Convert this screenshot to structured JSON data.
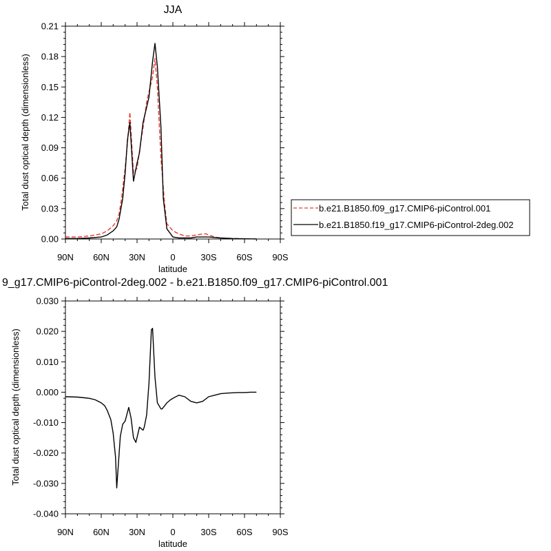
{
  "chart_data": [
    {
      "type": "line",
      "title": "JJA",
      "xlabel": "latitude",
      "ylabel": "Total dust optical depth (dimensionless)",
      "xlim": [
        90,
        -90
      ],
      "ylim": [
        0,
        0.21
      ],
      "xticks": [
        90,
        60,
        30,
        0,
        -30,
        -60,
        -90
      ],
      "xtick_labels": [
        "90N",
        "60N",
        "30N",
        "0",
        "30S",
        "60S",
        "90S"
      ],
      "yticks": [
        0,
        0.03,
        0.06,
        0.09,
        0.12,
        0.15,
        0.18,
        0.21
      ],
      "ytick_labels": [
        "0.00",
        "0.03",
        "0.06",
        "0.09",
        "0.12",
        "0.15",
        "0.18",
        "0.21"
      ],
      "grid": false,
      "legend_position": "right",
      "series": [
        {
          "name": "b.e21.B1850.f09_g17.CMIP6-piControl.001",
          "color": "#e8372f",
          "dash": "dashed",
          "x": [
            90,
            80,
            70,
            60,
            55,
            50,
            47,
            45,
            43,
            40,
            38,
            36,
            33,
            30,
            27,
            25,
            22,
            20,
            17,
            15,
            13,
            10,
            7,
            5,
            0,
            -5,
            -10,
            -15,
            -20,
            -25,
            -28,
            -30,
            -35,
            -40,
            -50,
            -60,
            -70
          ],
          "y": [
            0.002,
            0.002,
            0.003,
            0.005,
            0.008,
            0.013,
            0.018,
            0.025,
            0.04,
            0.07,
            0.095,
            0.125,
            0.065,
            0.07,
            0.095,
            0.11,
            0.135,
            0.145,
            0.16,
            0.178,
            0.15,
            0.08,
            0.035,
            0.015,
            0.008,
            0.005,
            0.003,
            0.003,
            0.004,
            0.005,
            0.005,
            0.004,
            0.002,
            0.001,
            0.0005,
            0.0002,
            0.0001
          ]
        },
        {
          "name": "b.e21.B1850.f19_g17.CMIP6-piControl-2deg.002",
          "color": "#000000",
          "dash": "solid",
          "x": [
            90,
            80,
            70,
            60,
            55,
            50,
            47,
            45,
            42,
            40,
            38,
            36,
            33,
            30,
            28,
            25,
            22,
            20,
            17,
            15,
            13,
            10,
            8,
            5,
            0,
            -5,
            -10,
            -15,
            -20,
            -25,
            -28,
            -30,
            -35,
            -40,
            -50,
            -60,
            -70
          ],
          "y": [
            0.0005,
            0.0005,
            0.001,
            0.002,
            0.004,
            0.008,
            0.012,
            0.02,
            0.04,
            0.065,
            0.098,
            0.115,
            0.057,
            0.075,
            0.085,
            0.115,
            0.13,
            0.14,
            0.175,
            0.193,
            0.17,
            0.11,
            0.04,
            0.01,
            0.002,
            0.001,
            0.001,
            0.001,
            0.002,
            0.002,
            0.002,
            0.002,
            0.0015,
            0.001,
            0.0005,
            0.0002,
            0.0001
          ]
        }
      ]
    },
    {
      "type": "line",
      "title": "9_g17.CMIP6-piControl-2deg.002 - b.e21.B1850.f09_g17.CMIP6-piControl.001",
      "xlabel": "latitude",
      "ylabel": "Total dust optical depth (dimensionless)",
      "xlim": [
        90,
        -90
      ],
      "ylim": [
        -0.04,
        0.03
      ],
      "xticks": [
        90,
        60,
        30,
        0,
        -30,
        -60,
        -90
      ],
      "xtick_labels": [
        "90N",
        "60N",
        "30N",
        "0",
        "30S",
        "60S",
        "90S"
      ],
      "yticks": [
        -0.04,
        -0.03,
        -0.02,
        -0.01,
        0,
        0.01,
        0.02,
        0.03
      ],
      "ytick_labels": [
        "-0.040",
        "-0.030",
        "-0.020",
        "-0.010",
        "0.000",
        "0.010",
        "0.020",
        "0.030"
      ],
      "grid": false,
      "series": [
        {
          "color": "#000000",
          "dash": "solid",
          "x": [
            90,
            80,
            70,
            65,
            60,
            57,
            55,
            52,
            50,
            48,
            47,
            45,
            44,
            42,
            40,
            37,
            35,
            33,
            31,
            28,
            25,
            24,
            22,
            20,
            18,
            17,
            15,
            13,
            10,
            9,
            7,
            5,
            2,
            0,
            -5,
            -10,
            -15,
            -20,
            -25,
            -30,
            -35,
            -40,
            -45,
            -50,
            -55,
            -60,
            -65,
            -70
          ],
          "y": [
            -0.0015,
            -0.0016,
            -0.002,
            -0.0025,
            -0.0035,
            -0.0045,
            -0.006,
            -0.009,
            -0.0135,
            -0.0215,
            -0.0315,
            -0.02,
            -0.0145,
            -0.0105,
            -0.0095,
            -0.005,
            -0.0085,
            -0.015,
            -0.0165,
            -0.0115,
            -0.0125,
            -0.0115,
            -0.0075,
            0.003,
            0.0205,
            0.021,
            0.005,
            -0.0035,
            -0.0055,
            -0.0055,
            -0.0045,
            -0.0035,
            -0.0025,
            -0.002,
            -0.001,
            -0.0015,
            -0.003,
            -0.0035,
            -0.003,
            -0.0015,
            -0.001,
            -0.0005,
            -0.0003,
            -0.0002,
            -0.0001,
            -0.0001,
            0.0,
            0.0
          ]
        }
      ]
    }
  ]
}
